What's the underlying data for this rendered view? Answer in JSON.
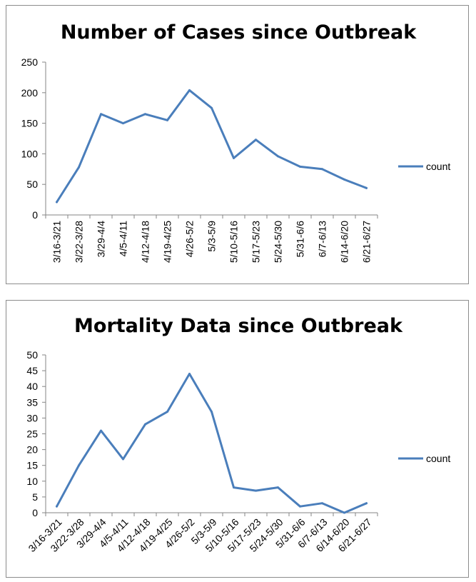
{
  "chart_data": [
    {
      "type": "line",
      "title": "Number of Cases since Outbreak",
      "categories": [
        "3/16-3/21",
        "3/22-3/28",
        "3/29-4/4",
        "4/5-4/11",
        "4/12-4/18",
        "4/19-4/25",
        "4/26-5/2",
        "5/3-5/9",
        "5/10-5/16",
        "5/17-5/23",
        "5/24-5/30",
        "5/31-6/6",
        "6/7-6/13",
        "6/14-6/20",
        "6/21-6/27"
      ],
      "series": [
        {
          "name": "count",
          "values": [
            21,
            78,
            165,
            150,
            165,
            155,
            204,
            175,
            93,
            123,
            96,
            79,
            75,
            58,
            44
          ]
        }
      ],
      "ylim": [
        0,
        250
      ],
      "yticks": [
        0,
        50,
        100,
        150,
        200,
        250
      ],
      "grid": false,
      "legend_position": "right",
      "xtick_rotation": "vertical",
      "color": "#4a7ebb"
    },
    {
      "type": "line",
      "title": "Mortality Data since Outbreak",
      "categories": [
        "3/16-3/21",
        "3/22-3/28",
        "3/29-4/4",
        "4/5-4/11",
        "4/12-4/18",
        "4/19-4/25",
        "4/26-5/2",
        "5/3-5/9",
        "5/10-5/16",
        "5/17-5/23",
        "5/24-5/30",
        "5/31-6/6",
        "6/7-6/13",
        "6/14-6/20",
        "6/21-6/27"
      ],
      "series": [
        {
          "name": "count",
          "values": [
            2,
            15,
            26,
            17,
            28,
            32,
            44,
            32,
            8,
            7,
            8,
            2,
            3,
            0,
            3
          ]
        }
      ],
      "ylim": [
        0,
        50
      ],
      "yticks": [
        0,
        5,
        10,
        15,
        20,
        25,
        30,
        35,
        40,
        45,
        50
      ],
      "grid": false,
      "legend_position": "right",
      "xtick_rotation": "diagonal",
      "color": "#4a7ebb"
    }
  ]
}
